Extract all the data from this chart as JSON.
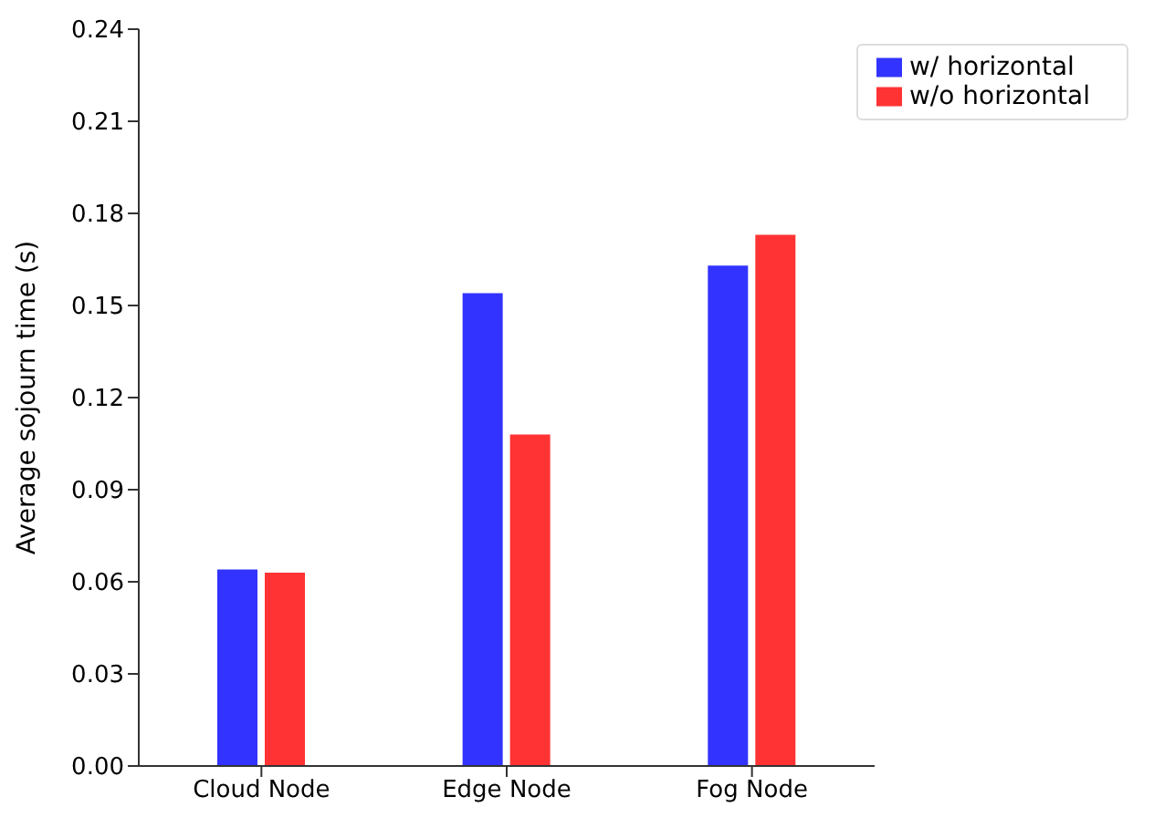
{
  "chart_data": {
    "type": "bar",
    "ylabel": "Average sojourn time (s)",
    "categories": [
      "Cloud Node",
      "Edge Node",
      "Fog Node"
    ],
    "series": [
      {
        "name": "w/ horizontal",
        "color": "#3333ff",
        "values": [
          0.064,
          0.154,
          0.163
        ]
      },
      {
        "name": "w/o horizontal",
        "color": "#ff3333",
        "values": [
          0.063,
          0.108,
          0.173
        ]
      }
    ],
    "ylim": [
      0,
      0.24
    ],
    "yticks": [
      {
        "value": 0,
        "label": "0.00"
      },
      {
        "value": 0.03,
        "label": "0.03"
      },
      {
        "value": 0.06,
        "label": "0.06"
      },
      {
        "value": 0.09,
        "label": "0.09"
      },
      {
        "value": 0.12,
        "label": "0.12"
      },
      {
        "value": 0.15,
        "label": "0.15"
      },
      {
        "value": 0.18,
        "label": "0.18"
      },
      {
        "value": 0.21,
        "label": "0.21"
      },
      {
        "value": 0.24,
        "label": "0.24"
      }
    ],
    "grid": false,
    "legend": "top right"
  }
}
